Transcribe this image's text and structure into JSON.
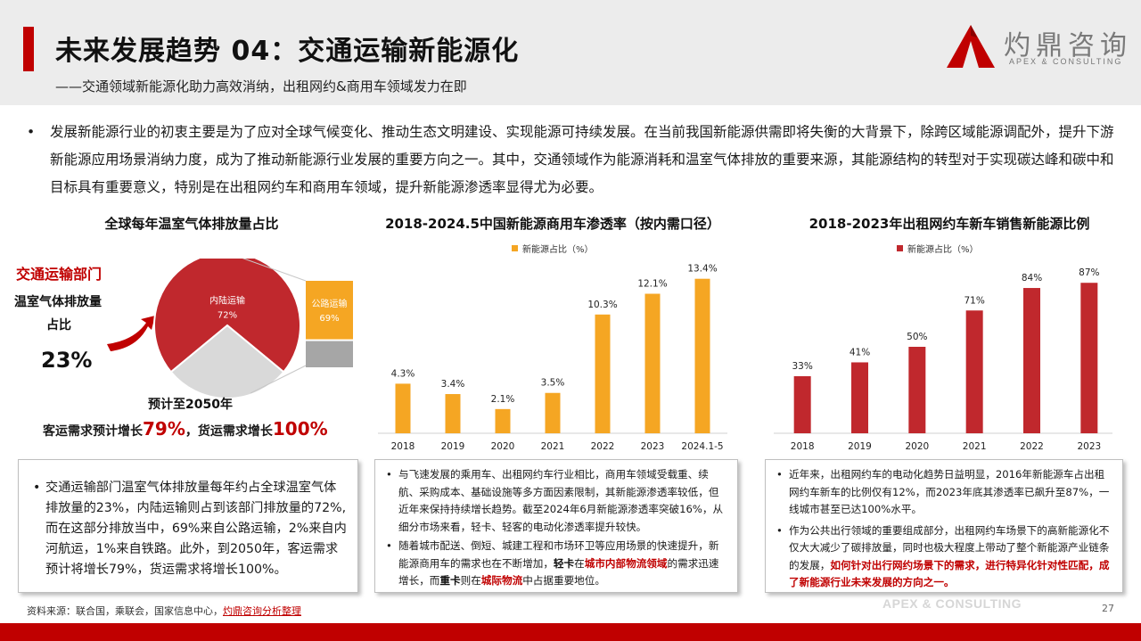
{
  "header": {
    "title": "未来发展趋势 04：交通运输新能源化",
    "subtitle": "——交通领域新能源化助力高效消纳，出租网约&商用车领域发力在即"
  },
  "logo": {
    "name": "灼鼎咨询",
    "sub": "APEX & CONSULTING"
  },
  "intro": {
    "bullet": "•",
    "text": "发展新能源行业的初衷主要是为了应对全球气候变化、推动生态文明建设、实现能源可持续发展。在当前我国新能源供需即将失衡的大背景下，除跨区域能源调配外，提升下游新能源应用场景消纳力度，成为了推动新能源行业发展的重要方向之一。其中，交通领域作为能源消耗和温室气体排放的重要来源，其能源结构的转型对于实现碳达峰和碳中和目标具有重要意义，特别是在出租网约车和商用车领域，提升新能源渗透率显得尤为必要。"
  },
  "left_panel": {
    "title": "全球每年温室气体排放量占比",
    "label_red": "交通运输部门",
    "label_line1": "温室气体排放量",
    "label_line2": "占比",
    "share": "23%",
    "forecast_line1": "预计至2050年",
    "forecast_a": "客运需求预计增长",
    "forecast_a_val": "79%",
    "forecast_b": "，货运需求增长",
    "forecast_b_val": "100%"
  },
  "chart_data": [
    {
      "type": "pie",
      "title": "全球每年温室气体排放量占比",
      "slices": [
        {
          "label": "内陆运输",
          "value": 72,
          "value_label": "72%",
          "color": "#c0282d"
        },
        {
          "label": "",
          "value": 28,
          "color": "#d9d9d9"
        }
      ],
      "breakdown": [
        {
          "label": "公路运输",
          "value": 69,
          "value_label": "69%",
          "color": "#f5a623"
        },
        {
          "label": "",
          "value": 31,
          "color": "#a6a6a6"
        }
      ]
    },
    {
      "type": "bar",
      "title": "2018-2024.5中国新能源商用车渗透率（按内需口径）",
      "legend": "新能源占比（%）",
      "legend_position": "top-left",
      "color": "#f5a623",
      "categories": [
        "2018",
        "2019",
        "2020",
        "2021",
        "2022",
        "2023",
        "2024.1-5"
      ],
      "values": [
        4.3,
        3.4,
        2.1,
        3.5,
        10.3,
        12.1,
        13.4
      ],
      "value_labels": [
        "4.3%",
        "3.4%",
        "2.1%",
        "3.5%",
        "10.3%",
        "12.1%",
        "13.4%"
      ],
      "ylim": [
        0,
        15
      ]
    },
    {
      "type": "bar",
      "title": "2018-2023年出租网约车新车销售新能源比例",
      "legend": "新能源占比（%）",
      "legend_position": "top-left",
      "color": "#c0282d",
      "categories": [
        "2018",
        "2019",
        "2020",
        "2021",
        "2022",
        "2023"
      ],
      "values": [
        33,
        41,
        50,
        71,
        84,
        87
      ],
      "value_labels": [
        "33%",
        "41%",
        "50%",
        "71%",
        "84%",
        "87%"
      ],
      "ylim": [
        0,
        100
      ]
    }
  ],
  "box1": {
    "text": "交通运输部门温室气体排放量每年约占全球温室气体排放量的23%，内陆运输则占到该部门排放量的72%,而在这部分排放当中，69%来自公路运输，2%来自内河航运，1%来自铁路。此外，到2050年，客运需求预计将增长79%，货运需求将增长100%。"
  },
  "box2": {
    "item1": "与飞速发展的乘用车、出租网约车行业相比，商用车领域受载重、续航、采购成本、基础设施等多方面因素限制，其新能源渗透率较低，但近年来保持持续增长趋势。截至2024年6月新能源渗透率突破16%，从细分市场来看，轻卡、轻客的电动化渗透率提升较快。",
    "item2_a": "随着城市配送、倒短、城建工程和市场环卫等应用场景的快速提升，新能源商用车的需求也在不断增加，",
    "item2_b": "轻卡",
    "item2_c": "在",
    "item2_d": "城市内部物流领域",
    "item2_e": "的需求迅速增长，而",
    "item2_f": "重卡",
    "item2_g": "则在",
    "item2_h": "城际物流",
    "item2_i": "中占据重要地位。"
  },
  "box3": {
    "item1": "近年来，出租网约车的电动化趋势日益明显，2016年新能源车占出租网约车新车的比例仅有12%，而2023年底其渗透率已飙升至87%，一线城市甚至已达100%水平。",
    "item2_a": "作为公共出行领域的重要组成部分，出租网约车场景下的高新能源化不仅大大减少了碳排放量，同时也极大程度上带动了整个新能源产业链条的发展，",
    "item2_b": "如何针对出行网约场景下的需求，进行特异化针对性匹配，成了新能源行业未来发展的方向之一。"
  },
  "footer": {
    "source_prefix": "资料来源：联合国，乘联会，国家信息中心，",
    "source_hl": "灼鼎咨询分析整理",
    "brand": "APEX & CONSULTING",
    "page": "27"
  }
}
